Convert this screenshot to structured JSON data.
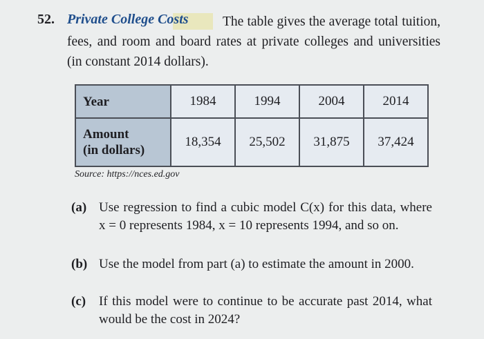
{
  "problem": {
    "number": "52.",
    "title": "Private College Costs",
    "intro": "The table gives the average total tuition, fees, and room and board rates at private colleges and universities (in constant 2014 dollars).",
    "table": {
      "header": [
        "Year",
        "1984",
        "1994",
        "2004",
        "2014"
      ],
      "row_label": [
        "Amount",
        "(in dollars)"
      ],
      "row": [
        "18,354",
        "25,502",
        "31,875",
        "37,424"
      ]
    },
    "source": "Source: https://nces.ed.gov",
    "parts": [
      {
        "label": "(a)",
        "text": "Use regression to find a cubic model C(x) for this data, where x = 0 represents 1984, x = 10 represents 1994, and so on."
      },
      {
        "label": "(b)",
        "text": "Use the model from part (a) to estimate the amount in 2000."
      },
      {
        "label": "(c)",
        "text": "If this model were to continue to be accurate past 2014, what would be the cost in 2024?"
      }
    ]
  }
}
